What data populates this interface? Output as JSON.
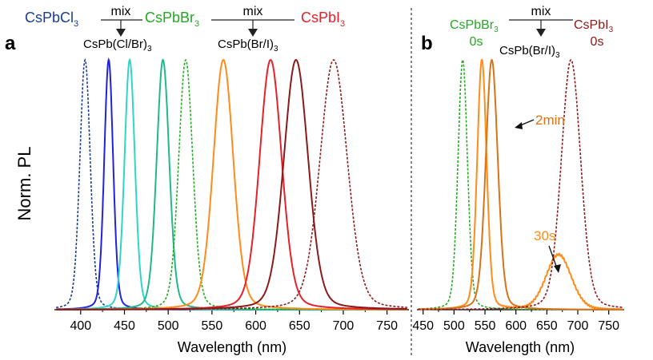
{
  "colors": {
    "CsPbCl3": "#1a3d8f",
    "blue": "#2222dd",
    "cyan": "#2fd6c8",
    "teal": "#22b88a",
    "CsPbBr3": "#22aa22",
    "orange": "#ff8c1a",
    "dark_orange": "#d9731a",
    "red": "#e3222a",
    "dark_red": "#8b1a1a",
    "CsPbI3": "#e3222a",
    "CsPbI3_b": "#8b1a1a"
  },
  "ylabel": "Norm. PL",
  "panel_a": {
    "letter": "a",
    "labels": {
      "CsPbCl3": "CsPbCl3",
      "CsPbBr3": "CsPbBr3",
      "CsPbI3": "CsPbI3",
      "mix_left": "mix",
      "mix_right": "mix",
      "mixed_left": "CsPb(Cl/Br)3",
      "mixed_right": "CsPb(Br/I)3"
    }
  },
  "panel_b": {
    "letter": "b",
    "labels": {
      "CsPbBr3": "CsPbBr3",
      "CsPbBr3_time": "0s",
      "CsPbI3": "CsPbI3",
      "CsPbI3_time": "0s",
      "mix": "mix",
      "mixed": "CsPb(Br/I)3",
      "t_2min": "2min",
      "t_30s": "30s"
    }
  },
  "chart_data": [
    {
      "type": "line",
      "panel": "a",
      "xlabel": "Wavelength (nm)",
      "ylabel": "Norm. PL",
      "xlim": [
        370,
        775
      ],
      "ylim": [
        0,
        1
      ],
      "xticks": [
        400,
        450,
        500,
        550,
        600,
        650,
        700,
        750
      ],
      "series": [
        {
          "peak": 405,
          "fwhm": 14,
          "color": "#1a3d8f",
          "dashed": true
        },
        {
          "peak": 432,
          "fwhm": 12,
          "color": "#2222dd",
          "dashed": false
        },
        {
          "peak": 456,
          "fwhm": 14,
          "color": "#2fd6c8",
          "dashed": false
        },
        {
          "peak": 494,
          "fwhm": 17,
          "color": "#22b88a",
          "dashed": false
        },
        {
          "peak": 520,
          "fwhm": 19,
          "color": "#22aa22",
          "dashed": true
        },
        {
          "peak": 563,
          "fwhm": 27,
          "color": "#ff8c1a",
          "dashed": false
        },
        {
          "peak": 617,
          "fwhm": 30,
          "color": "#e3222a",
          "dashed": false
        },
        {
          "peak": 646,
          "fwhm": 33,
          "color": "#8b1a1a",
          "dashed": false
        },
        {
          "peak": 689,
          "fwhm": 37,
          "color": "#8b1a1a",
          "dashed": true
        }
      ]
    },
    {
      "type": "line",
      "panel": "b",
      "xlabel": "Wavelength (nm)",
      "ylabel": "Norm. PL",
      "xlim": [
        440,
        775
      ],
      "ylim": [
        0,
        1
      ],
      "xticks": [
        450,
        500,
        550,
        600,
        650,
        700,
        750
      ],
      "series": [
        {
          "peak": 514,
          "fwhm": 18,
          "color": "#22aa22",
          "dashed": true
        },
        {
          "peak": 545,
          "fwhm": 18,
          "color": "#ff8c1a",
          "dashed": false,
          "second_peak": 669,
          "second_amp": 0.22,
          "second_fwhm": 48
        },
        {
          "peak": 561,
          "fwhm": 23,
          "color": "#d9731a",
          "dashed": false
        },
        {
          "peak": 689,
          "fwhm": 37,
          "color": "#8b1a1a",
          "dashed": true
        }
      ]
    }
  ]
}
